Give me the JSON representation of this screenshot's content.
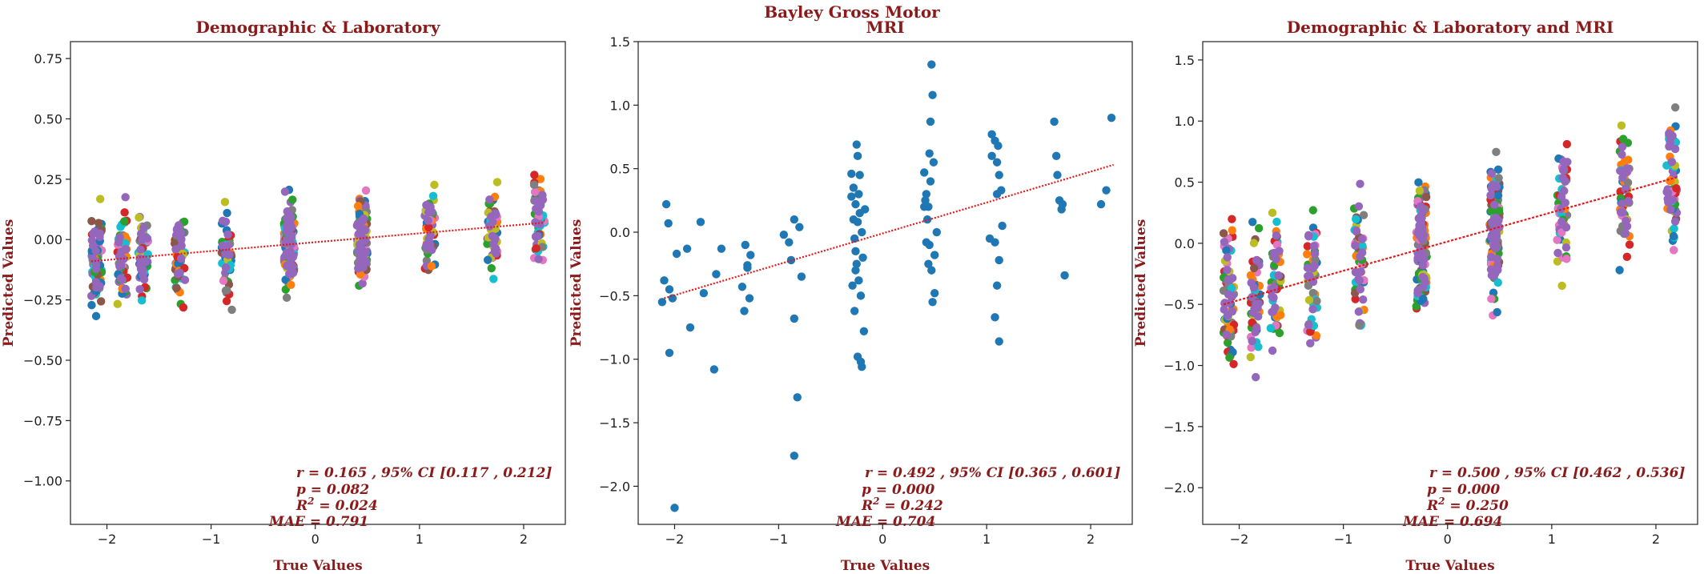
{
  "figure": {
    "suptitle": "Bayley Gross Motor"
  },
  "palette": [
    "#1f77b4",
    "#ff7f0e",
    "#2ca02c",
    "#d62728",
    "#9467bd",
    "#8c564b",
    "#e377c2",
    "#7f7f7f",
    "#bcbd22",
    "#17becf"
  ],
  "chart_data": [
    {
      "type": "scatter",
      "title": "Demographic & Laboratory",
      "xlabel": "True Values",
      "ylabel": "Predicted Values",
      "xlim": [
        -2.35,
        2.4
      ],
      "ylim": [
        -1.18,
        0.82
      ],
      "xticks": [
        -2,
        -1,
        0,
        1,
        2
      ],
      "xtick_labels": [
        "−2",
        "−1",
        "0",
        "1",
        "2"
      ],
      "yticks": [
        -1.0,
        -0.75,
        -0.5,
        -0.25,
        0.0,
        0.25,
        0.5,
        0.75
      ],
      "ytick_labels": [
        "−1.00",
        "−0.75",
        "−0.50",
        "−0.25",
        "0.00",
        "0.25",
        "0.50",
        "0.75"
      ],
      "multicolor": true,
      "x_groups": [
        -2.1,
        -1.85,
        -1.65,
        -1.3,
        -0.85,
        -0.25,
        0.45,
        1.1,
        1.7,
        2.15
      ],
      "trend": {
        "x1": -2.15,
        "y1": -0.09,
        "x2": 2.2,
        "y2": 0.07,
        "style": "dotted"
      },
      "stats": {
        "r": "r = 0.165 , 95% CI [0.117 , 0.212]",
        "p": "p = 0.082",
        "r2_label": "R",
        "r2_sup": "2",
        "r2_value": " = 0.024",
        "mae": "MAE = 0.791"
      }
    },
    {
      "type": "scatter",
      "title": "MRI",
      "xlabel": "True Values",
      "ylabel": "Predicted Values",
      "xlim": [
        -2.35,
        2.4
      ],
      "ylim": [
        -2.3,
        1.5
      ],
      "xticks": [
        -2,
        -1,
        0,
        1,
        2
      ],
      "xtick_labels": [
        "−2",
        "−1",
        "0",
        "1",
        "2"
      ],
      "yticks": [
        -2.0,
        -1.5,
        -1.0,
        -0.5,
        0.0,
        0.5,
        1.0,
        1.5
      ],
      "ytick_labels": [
        "−2.0",
        "−1.5",
        "−1.0",
        "−0.5",
        "0.0",
        "0.5",
        "1.0",
        "1.5"
      ],
      "multicolor": false,
      "x_groups": [
        -2.1,
        -1.85,
        -1.65,
        -1.3,
        -0.85,
        -0.25,
        0.45,
        1.1,
        1.7,
        2.15
      ],
      "points": [
        [
          -2.1,
          -0.38
        ],
        [
          -2.08,
          0.22
        ],
        [
          -2.05,
          -0.95
        ],
        [
          -2.05,
          -0.45
        ],
        [
          -2.0,
          -2.17
        ],
        [
          -1.98,
          -0.17
        ],
        [
          -2.12,
          -0.55
        ],
        [
          -2.06,
          0.07
        ],
        [
          -2.02,
          -0.52
        ],
        [
          -1.88,
          -0.13
        ],
        [
          -1.85,
          -0.75
        ],
        [
          -1.72,
          -0.48
        ],
        [
          -1.75,
          0.08
        ],
        [
          -1.62,
          -1.08
        ],
        [
          -1.6,
          -0.33
        ],
        [
          -1.55,
          -0.13
        ],
        [
          -1.35,
          -0.43
        ],
        [
          -1.32,
          -0.1
        ],
        [
          -1.3,
          -0.28
        ],
        [
          -1.28,
          -0.52
        ],
        [
          -1.33,
          -0.62
        ],
        [
          -1.27,
          -0.18
        ],
        [
          -1.3,
          -0.26
        ],
        [
          -0.95,
          -0.02
        ],
        [
          -0.9,
          -0.08
        ],
        [
          -0.85,
          0.1
        ],
        [
          -0.85,
          -0.68
        ],
        [
          -0.82,
          -1.3
        ],
        [
          -0.85,
          -1.76
        ],
        [
          -0.78,
          -0.35
        ],
        [
          -0.8,
          0.04
        ],
        [
          -0.88,
          -0.22
        ],
        [
          -0.3,
          0.46
        ],
        [
          -0.28,
          0.35
        ],
        [
          -0.25,
          0.69
        ],
        [
          -0.26,
          0.22
        ],
        [
          -0.22,
          0.15
        ],
        [
          -0.24,
          0.08
        ],
        [
          -0.27,
          -0.05
        ],
        [
          -0.25,
          -0.25
        ],
        [
          -0.23,
          -0.38
        ],
        [
          -0.21,
          -0.5
        ],
        [
          -0.27,
          -0.62
        ],
        [
          -0.24,
          -0.98
        ],
        [
          -0.2,
          -1.06
        ],
        [
          -0.18,
          -0.78
        ],
        [
          -0.3,
          0.28
        ],
        [
          -0.22,
          0.45
        ],
        [
          -0.26,
          -0.15
        ],
        [
          -0.2,
          0.0
        ],
        [
          -0.17,
          0.18
        ],
        [
          -0.29,
          -0.42
        ],
        [
          -0.24,
          0.6
        ],
        [
          -0.19,
          -0.2
        ],
        [
          -0.28,
          0.1
        ],
        [
          -0.21,
          -1.02
        ],
        [
          -0.23,
          0.3
        ],
        [
          -0.26,
          -0.3
        ],
        [
          0.4,
          0.47
        ],
        [
          0.42,
          0.3
        ],
        [
          0.45,
          0.62
        ],
        [
          0.46,
          0.87
        ],
        [
          0.48,
          1.08
        ],
        [
          0.47,
          1.32
        ],
        [
          0.43,
          0.1
        ],
        [
          0.45,
          -0.1
        ],
        [
          0.44,
          -0.25
        ],
        [
          0.5,
          -0.48
        ],
        [
          0.48,
          -0.55
        ],
        [
          0.4,
          0.2
        ],
        [
          0.52,
          0.0
        ],
        [
          0.46,
          0.4
        ],
        [
          0.42,
          -0.08
        ],
        [
          0.49,
          0.55
        ],
        [
          0.41,
          0.25
        ],
        [
          0.5,
          -0.18
        ],
        [
          0.44,
          0.2
        ],
        [
          0.47,
          -0.3
        ],
        [
          1.05,
          0.77
        ],
        [
          1.08,
          0.72
        ],
        [
          1.1,
          0.55
        ],
        [
          1.12,
          0.45
        ],
        [
          1.1,
          0.3
        ],
        [
          1.15,
          0.05
        ],
        [
          1.08,
          -0.08
        ],
        [
          1.12,
          -0.22
        ],
        [
          1.1,
          -0.42
        ],
        [
          1.08,
          -0.67
        ],
        [
          1.12,
          -0.86
        ],
        [
          1.05,
          0.6
        ],
        [
          1.14,
          0.33
        ],
        [
          1.03,
          -0.05
        ],
        [
          1.11,
          0.68
        ],
        [
          1.65,
          0.87
        ],
        [
          1.68,
          0.45
        ],
        [
          1.7,
          0.25
        ],
        [
          1.72,
          0.18
        ],
        [
          1.75,
          -0.34
        ],
        [
          1.67,
          0.6
        ],
        [
          1.73,
          0.22
        ],
        [
          2.1,
          0.22
        ],
        [
          2.15,
          0.33
        ],
        [
          2.2,
          0.9
        ]
      ],
      "point_color": "#1f77b4",
      "trend": {
        "x1": -2.1,
        "y1": -0.52,
        "x2": 2.22,
        "y2": 0.53,
        "style": "dotted"
      },
      "stats": {
        "r": "r = 0.492 , 95% CI [0.365 , 0.601]",
        "p": "p = 0.000",
        "r2_label": "R",
        "r2_sup": "2",
        "r2_value": " = 0.242",
        "mae": "MAE = 0.704"
      }
    },
    {
      "type": "scatter",
      "title": "Demographic & Laboratory and MRI",
      "xlabel": "True Values",
      "ylabel": "Predicted Values",
      "xlim": [
        -2.35,
        2.4
      ],
      "ylim": [
        -2.3,
        1.65
      ],
      "xticks": [
        -2,
        -1,
        0,
        1,
        2
      ],
      "xtick_labels": [
        "−2",
        "−1",
        "0",
        "1",
        "2"
      ],
      "yticks": [
        -2.0,
        -1.5,
        -1.0,
        -0.5,
        0.0,
        0.5,
        1.0,
        1.5
      ],
      "ytick_labels": [
        "−2.0",
        "−1.5",
        "−1.0",
        "−0.5",
        "0.0",
        "0.5",
        "1.0",
        "1.5"
      ],
      "multicolor": true,
      "x_groups": [
        -2.1,
        -1.85,
        -1.65,
        -1.3,
        -0.85,
        -0.25,
        0.45,
        1.1,
        1.7,
        2.15
      ],
      "trend": {
        "x1": -2.15,
        "y1": -0.5,
        "x2": 2.2,
        "y2": 0.54,
        "style": "solid-then-dotted"
      },
      "stats": {
        "r": "r = 0.500 , 95% CI [0.462 , 0.536]",
        "p": "p = 0.000",
        "r2_label": "R",
        "r2_sup": "2",
        "r2_value": " = 0.250",
        "mae": "MAE = 0.694"
      }
    }
  ]
}
